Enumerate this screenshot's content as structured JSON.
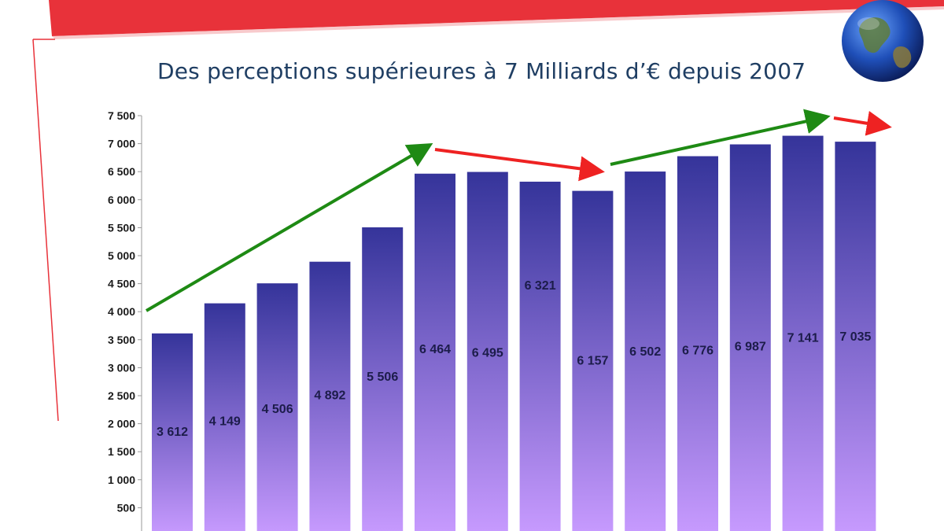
{
  "chart_data": {
    "type": "bar",
    "title": "Des perceptions supérieures à 7 Milliards d’€ depuis 2007",
    "xlabel": "",
    "ylabel": "",
    "categories": [
      "",
      "",
      "",
      "",
      "",
      "",
      "",
      "",
      "",
      "",
      "",
      "",
      "",
      ""
    ],
    "values": [
      3612,
      4149,
      4506,
      4892,
      5506,
      6464,
      6495,
      6321,
      6157,
      6502,
      6776,
      6987,
      7141,
      7035
    ],
    "data_labels": [
      "3 612",
      "4 149",
      "4 506",
      "4 892",
      "5 506",
      "6 464",
      "6 495",
      "6 321",
      "6 157",
      "6 502",
      "6 776",
      "6 987",
      "7 141",
      "7 035"
    ],
    "ylim": [
      0,
      7500
    ],
    "yticks": [
      500,
      1000,
      1500,
      2000,
      2500,
      3000,
      3500,
      4000,
      4500,
      5000,
      5500,
      6000,
      6500,
      7000,
      7500
    ],
    "ytick_labels": [
      "500",
      "1 000",
      "1 500",
      "2 000",
      "2 500",
      "3 000",
      "3 500",
      "4 000",
      "4 500",
      "5 000",
      "5 500",
      "6 000",
      "6 500",
      "7 000",
      "7 500"
    ],
    "grid": false,
    "bar_gradient": {
      "top": "#35349a",
      "bottom": "#c89bff"
    },
    "trend_arrows": [
      {
        "direction": "up",
        "color": "#1e8a14"
      },
      {
        "direction": "down",
        "color": "#ee2222"
      },
      {
        "direction": "up",
        "color": "#1e8a14"
      },
      {
        "direction": "down",
        "color": "#ee2222"
      }
    ]
  },
  "decor": {
    "banner_color": "#e8323a",
    "globe_icon": "globe-icon"
  }
}
